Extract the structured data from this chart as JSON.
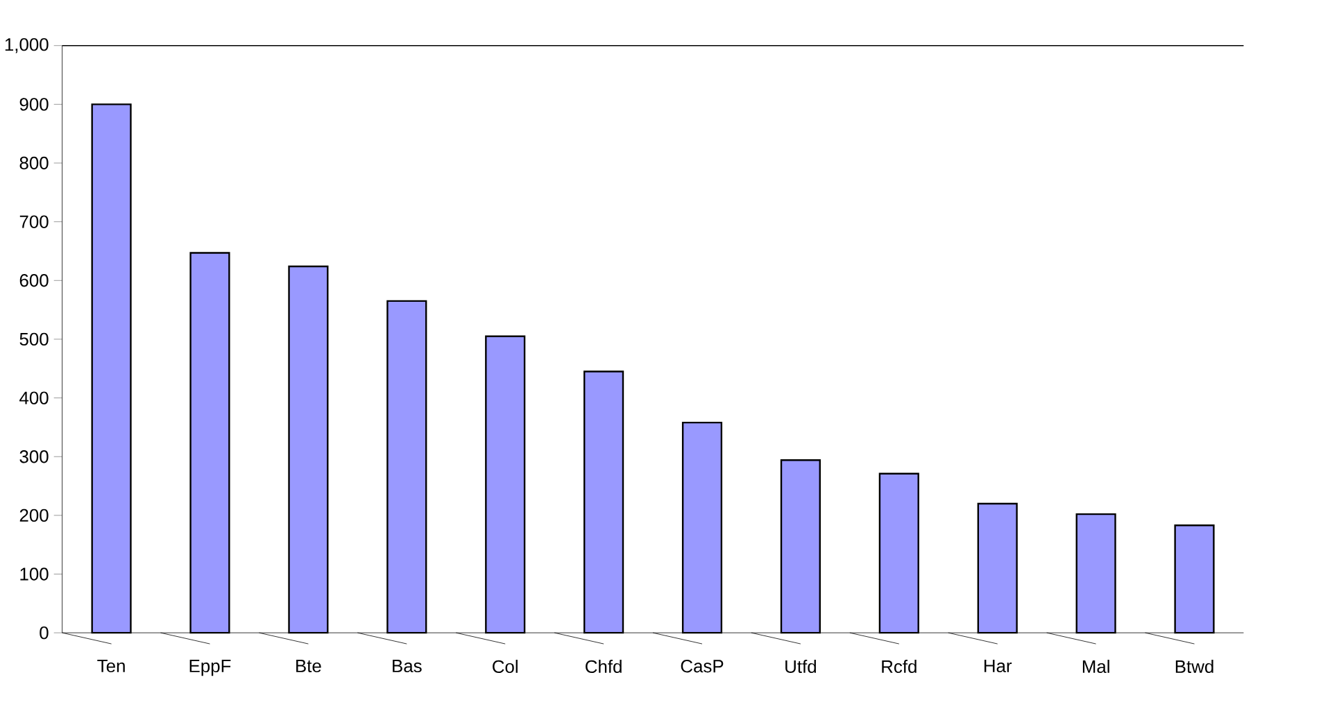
{
  "chart_data": {
    "type": "bar",
    "categories": [
      "Ten",
      "EppF",
      "Bte",
      "Bas",
      "Col",
      "Chfd",
      "CasP",
      "Utfd",
      "Rcfd",
      "Har",
      "Mal",
      "Btwd"
    ],
    "values": [
      900,
      647,
      624,
      565,
      505,
      445,
      358,
      294,
      271,
      220,
      202,
      183
    ],
    "color": "#9999ff",
    "ylim": [
      0,
      1000
    ],
    "yticks": [
      0,
      {
        "value": 100,
        "label": "100"
      },
      200,
      300,
      400,
      500,
      600,
      700,
      800,
      900,
      {
        "value": 1000,
        "label": "1,000"
      }
    ],
    "grid": false
  }
}
